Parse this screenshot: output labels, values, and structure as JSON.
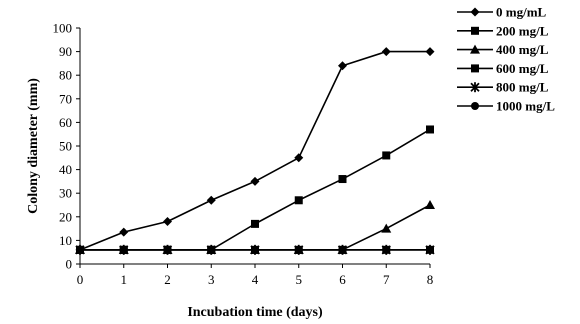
{
  "chart_data": {
    "type": "line",
    "xlabel": "Incubation time (days)",
    "ylabel": "Colony diameter (mm)",
    "x": [
      0,
      1,
      2,
      3,
      4,
      5,
      6,
      7,
      8
    ],
    "xlim": [
      0,
      8
    ],
    "ylim": [
      0,
      100
    ],
    "yticks": [
      0,
      10,
      20,
      30,
      40,
      50,
      60,
      70,
      80,
      90,
      100
    ],
    "grid": false,
    "legend_position": "top-right",
    "line_color": "#000000",
    "series": [
      {
        "name": "0 mg/mL",
        "marker": "diamond",
        "values": [
          6,
          13.5,
          18,
          27,
          35,
          45,
          84,
          90,
          90
        ]
      },
      {
        "name": "200 mg/L",
        "marker": "square",
        "values": [
          6,
          6,
          6,
          6,
          17,
          27,
          36,
          46,
          57
        ]
      },
      {
        "name": "400 mg/L",
        "marker": "triangle",
        "values": [
          6,
          6,
          6,
          6,
          6,
          6,
          6,
          15,
          25
        ]
      },
      {
        "name": "600 mg/L",
        "marker": "square",
        "values": [
          6,
          6,
          6,
          6,
          6,
          6,
          6,
          6,
          6
        ]
      },
      {
        "name": "800 mg/L",
        "marker": "star",
        "values": [
          6,
          6,
          6,
          6,
          6,
          6,
          6,
          6,
          6
        ]
      },
      {
        "name": "1000 mg/L",
        "marker": "circle",
        "values": [
          6,
          6,
          6,
          6,
          6,
          6,
          6,
          6,
          6
        ]
      }
    ]
  }
}
